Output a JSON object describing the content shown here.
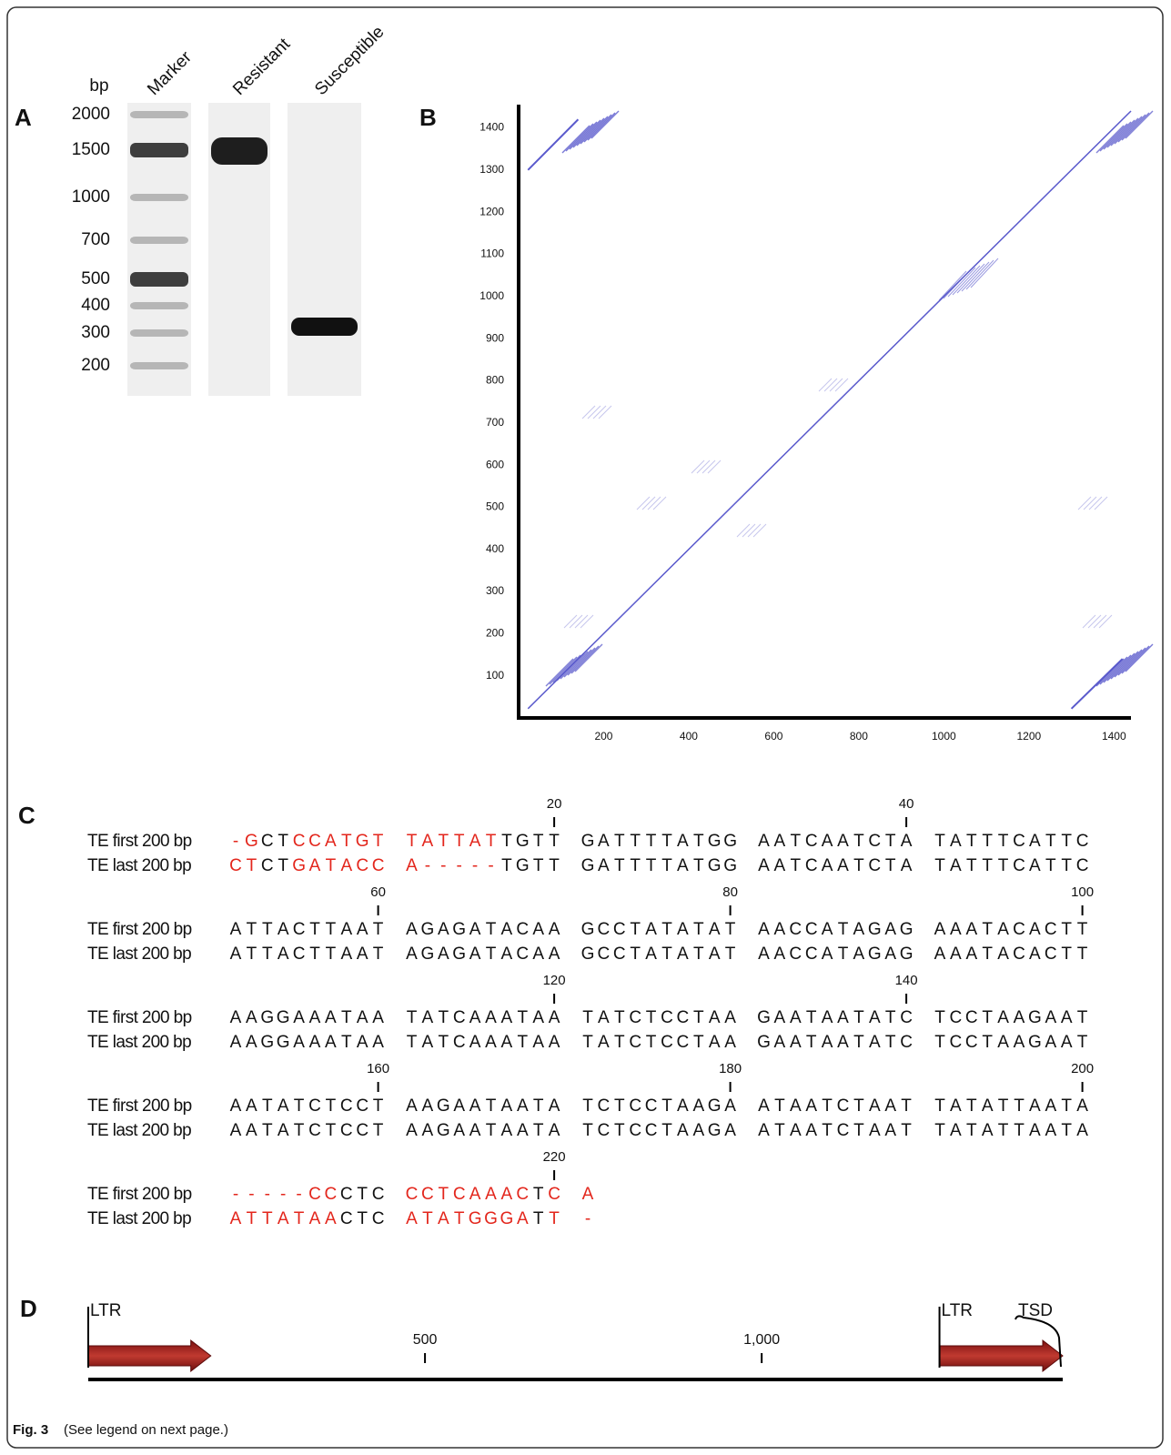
{
  "figure": {
    "panels": {
      "A": {
        "letter": "A",
        "unit": "bp",
        "ladder": [
          2000,
          1500,
          1000,
          700,
          500,
          400,
          300,
          200
        ],
        "lanes": [
          "Marker",
          "Resistant",
          "Susceptible"
        ]
      },
      "B": {
        "letter": "B",
        "xlim": [
          0,
          1440
        ],
        "ylim": [
          0,
          1440
        ],
        "xticks": [
          200,
          400,
          600,
          800,
          1000,
          1200,
          1400
        ],
        "yticks": [
          100,
          200,
          300,
          400,
          500,
          600,
          700,
          800,
          900,
          1000,
          1100,
          1200,
          1300,
          1400
        ],
        "color": "#5a5acc"
      },
      "C": {
        "letter": "C",
        "mismatch_color": "#e3261c",
        "blocks": [
          {
            "ruler": [
              20,
              40
            ],
            "rows": [
              {
                "label": "TE first 200 bp",
                "groups": [
                  "-GCTCCATGT",
                  "TATTATTGTT",
                  "GATTTTATGG",
                  "AATCAATCTA",
                  "TATTTCATTC"
                ]
              },
              {
                "label": "TE last 200 bp",
                "groups": [
                  "CTCTGATACC",
                  "A-----TGTT",
                  "GATTTTATGG",
                  "AATCAATCTA",
                  "TATTTCATTC"
                ]
              }
            ]
          },
          {
            "ruler": [
              60,
              80,
              100
            ],
            "rows": [
              {
                "label": "TE first 200 bp",
                "groups": [
                  "ATTACTTAAT",
                  "AGAGATACAA",
                  "GCCTATATAT",
                  "AACCATAGAG",
                  "AAATACACTT"
                ]
              },
              {
                "label": "TE last 200 bp",
                "groups": [
                  "ATTACTTAAT",
                  "AGAGATACAA",
                  "GCCTATATAT",
                  "AACCATAGAG",
                  "AAATACACTT"
                ]
              }
            ]
          },
          {
            "ruler": [
              120,
              140
            ],
            "rows": [
              {
                "label": "TE first 200 bp",
                "groups": [
                  "AAGGAAATAA",
                  "TATCAAATAA",
                  "TATCTCCTAA",
                  "GAATAATATC",
                  "TCCTAAGAAT"
                ]
              },
              {
                "label": "TE last 200 bp",
                "groups": [
                  "AAGGAAATAA",
                  "TATCAAATAA",
                  "TATCTCCTAA",
                  "GAATAATATC",
                  "TCCTAAGAAT"
                ]
              }
            ]
          },
          {
            "ruler": [
              160,
              180,
              200
            ],
            "rows": [
              {
                "label": "TE first 200 bp",
                "groups": [
                  "AATATCTCCT",
                  "AAGAATAATA",
                  "TCTCCTAAGA",
                  "ATAATCTAAT",
                  "TATATTAATA"
                ]
              },
              {
                "label": "TE last 200 bp",
                "groups": [
                  "AATATCTCCT",
                  "AAGAATAATA",
                  "TCTCCTAAGA",
                  "ATAATCTAAT",
                  "TATATTAATA"
                ]
              }
            ]
          },
          {
            "ruler": [
              220
            ],
            "rows": [
              {
                "label": "TE first 200 bp",
                "groups": [
                  "-----CCCTC",
                  "CCTCAAACTC",
                  "A"
                ]
              },
              {
                "label": "TE last 200 bp",
                "groups": [
                  "ATTATAACTC",
                  "ATATGGGATT",
                  "-"
                ]
              }
            ]
          }
        ]
      },
      "D": {
        "letter": "D",
        "xlim": [
          0,
          1447
        ],
        "ticks": [
          500,
          {
            "value": 1000,
            "label": "1,000"
          }
        ],
        "features": [
          {
            "label": "LTR",
            "start": 0,
            "end": 182
          },
          {
            "label": "LTR",
            "start": 1264,
            "end": 1447
          }
        ],
        "tsd": "TSD",
        "color": "#9e1a1a"
      }
    },
    "caption": {
      "label": "Fig. 3",
      "text": "(See legend on next page.)"
    }
  }
}
